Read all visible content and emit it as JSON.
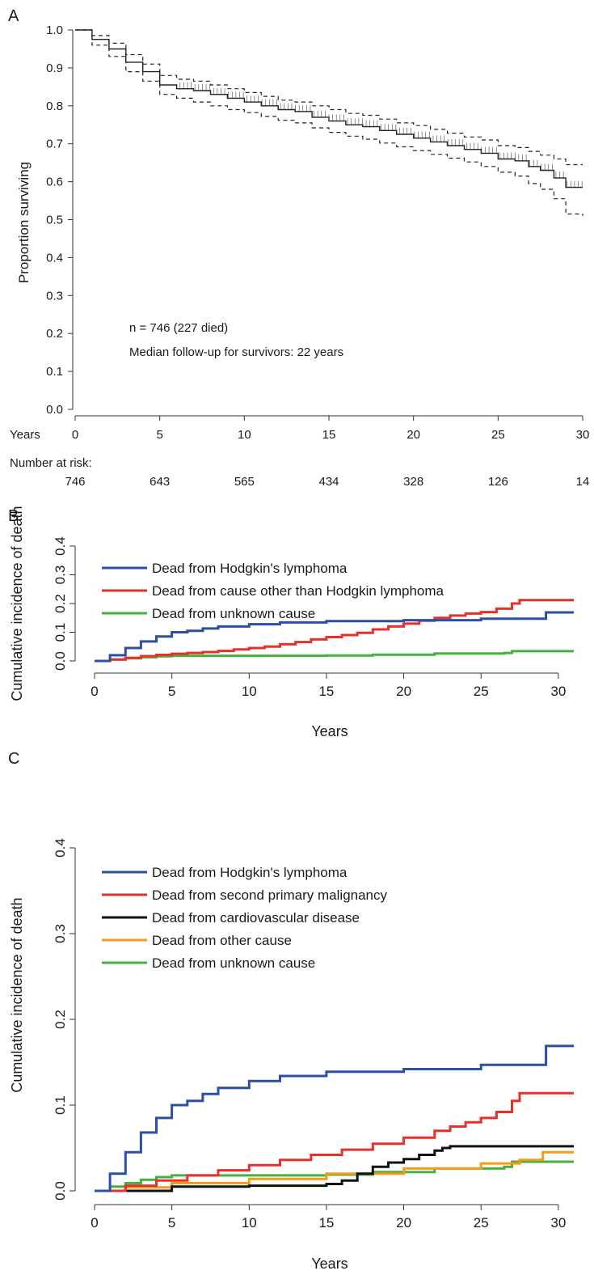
{
  "chart_data": [
    {
      "panel": "A",
      "type": "line",
      "title": "",
      "xlabel": "Years",
      "ylabel": "Proportion surviving",
      "xlim": [
        0,
        30
      ],
      "ylim": [
        0,
        1.0
      ],
      "x_ticks": [
        "0",
        "5",
        "10",
        "15",
        "20",
        "25",
        "30"
      ],
      "y_ticks": [
        "0.0",
        "0.1",
        "0.2",
        "0.3",
        "0.4",
        "0.5",
        "0.6",
        "0.7",
        "0.8",
        "0.9",
        "1.0"
      ],
      "annotations": [
        "n = 746 (227 died)",
        "Median follow-up for survivors: 22 years"
      ],
      "risk_table": {
        "label": "Number at risk:",
        "x": [
          0,
          5,
          10,
          15,
          20,
          25,
          30
        ],
        "values": [
          "746",
          "643",
          "565",
          "434",
          "328",
          "126",
          "14"
        ]
      },
      "series": [
        {
          "style": "solid",
          "x": [
            0,
            1,
            2,
            3,
            4,
            5,
            6,
            7,
            8,
            9,
            10,
            11,
            12,
            13,
            14,
            15,
            16,
            17,
            18,
            19,
            20,
            21,
            22,
            23,
            24,
            25,
            26,
            26.8,
            27.5,
            28.3,
            29,
            30
          ],
          "y": [
            1.0,
            0.975,
            0.95,
            0.915,
            0.89,
            0.855,
            0.845,
            0.84,
            0.83,
            0.82,
            0.81,
            0.8,
            0.79,
            0.785,
            0.77,
            0.76,
            0.75,
            0.745,
            0.735,
            0.725,
            0.715,
            0.705,
            0.695,
            0.685,
            0.675,
            0.66,
            0.655,
            0.64,
            0.63,
            0.61,
            0.585,
            0.585
          ]
        },
        {
          "style": "dashed",
          "x": [
            0,
            1,
            2,
            3,
            4,
            5,
            6,
            7,
            8,
            9,
            10,
            11,
            12,
            13,
            14,
            15,
            16,
            17,
            18,
            19,
            20,
            21,
            22,
            23,
            24,
            25,
            26,
            26.8,
            27.5,
            28.3,
            29,
            30
          ],
          "y": [
            1.0,
            0.985,
            0.965,
            0.935,
            0.91,
            0.88,
            0.87,
            0.865,
            0.855,
            0.845,
            0.835,
            0.825,
            0.815,
            0.81,
            0.8,
            0.79,
            0.78,
            0.775,
            0.765,
            0.755,
            0.748,
            0.738,
            0.728,
            0.718,
            0.71,
            0.695,
            0.69,
            0.68,
            0.67,
            0.66,
            0.645,
            0.645
          ]
        },
        {
          "style": "dashed",
          "x": [
            0,
            1,
            2,
            3,
            4,
            5,
            6,
            7,
            8,
            9,
            10,
            11,
            12,
            13,
            14,
            15,
            16,
            17,
            18,
            19,
            20,
            21,
            22,
            23,
            24,
            25,
            26,
            26.8,
            27.5,
            28.3,
            29,
            30
          ],
          "y": [
            1.0,
            0.96,
            0.93,
            0.89,
            0.865,
            0.83,
            0.82,
            0.81,
            0.8,
            0.79,
            0.782,
            0.772,
            0.762,
            0.755,
            0.742,
            0.73,
            0.72,
            0.712,
            0.702,
            0.692,
            0.682,
            0.672,
            0.662,
            0.652,
            0.64,
            0.625,
            0.615,
            0.595,
            0.58,
            0.555,
            0.515,
            0.51
          ]
        }
      ]
    },
    {
      "panel": "B",
      "type": "line",
      "title": "",
      "xlabel": "Years",
      "ylabel": "Cumulative incidence of death",
      "xlim": [
        0,
        31
      ],
      "ylim": [
        0,
        0.4
      ],
      "x_ticks": [
        "0",
        "5",
        "10",
        "15",
        "20",
        "25",
        "30"
      ],
      "y_ticks": [
        "0.0",
        "0.1",
        "0.2",
        "0.3",
        "0.4"
      ],
      "legend_position": "top-left",
      "series": [
        {
          "name": "Dead from Hodgkin's lymphoma",
          "color": "#2b4fa3",
          "x": [
            0,
            1,
            2,
            3,
            4,
            5,
            6,
            7,
            8,
            10,
            12,
            15,
            20,
            25,
            29.2,
            29.2,
            31
          ],
          "y": [
            0,
            0.02,
            0.045,
            0.068,
            0.085,
            0.1,
            0.105,
            0.113,
            0.12,
            0.128,
            0.134,
            0.139,
            0.142,
            0.147,
            0.147,
            0.169,
            0.169
          ]
        },
        {
          "name": "Dead from cause other than Hodgkin lymphoma",
          "color": "#e8302a",
          "x": [
            0,
            1,
            2,
            3,
            4,
            5,
            6,
            7,
            8,
            9,
            10,
            11,
            12,
            13,
            14,
            15,
            16,
            17,
            18,
            19,
            20,
            21,
            22,
            23,
            24,
            25,
            26,
            27,
            27.5,
            31
          ],
          "y": [
            0,
            0.005,
            0.011,
            0.017,
            0.021,
            0.025,
            0.028,
            0.031,
            0.035,
            0.04,
            0.045,
            0.05,
            0.058,
            0.066,
            0.075,
            0.083,
            0.09,
            0.098,
            0.11,
            0.12,
            0.13,
            0.14,
            0.15,
            0.158,
            0.165,
            0.17,
            0.182,
            0.2,
            0.212,
            0.212
          ]
        },
        {
          "name": "Dead from unknown cause",
          "color": "#44b23c",
          "x": [
            0,
            1,
            2,
            3,
            4,
            5,
            8,
            10,
            15,
            18,
            22,
            26.5,
            27,
            31
          ],
          "y": [
            0,
            0.005,
            0.009,
            0.013,
            0.016,
            0.018,
            0.018,
            0.018,
            0.019,
            0.022,
            0.026,
            0.028,
            0.034,
            0.034
          ]
        }
      ]
    },
    {
      "panel": "C",
      "type": "line",
      "title": "",
      "xlabel": "Years",
      "ylabel": "Cumulative incidence of death",
      "xlim": [
        0,
        31
      ],
      "ylim": [
        0,
        0.4
      ],
      "x_ticks": [
        "0",
        "5",
        "10",
        "15",
        "20",
        "25",
        "30"
      ],
      "y_ticks": [
        "0.0",
        "0.1",
        "0.2",
        "0.3",
        "0.4"
      ],
      "legend_position": "top-left",
      "series": [
        {
          "name": "Dead from Hodgkin's lymphoma",
          "color": "#2b4fa3",
          "x": [
            0,
            1,
            2,
            3,
            4,
            5,
            6,
            7,
            8,
            10,
            12,
            15,
            20,
            25,
            29.2,
            29.2,
            31
          ],
          "y": [
            0,
            0.02,
            0.045,
            0.068,
            0.085,
            0.1,
            0.105,
            0.113,
            0.12,
            0.128,
            0.134,
            0.139,
            0.142,
            0.147,
            0.147,
            0.169,
            0.169
          ]
        },
        {
          "name": "Dead from second primary malignancy",
          "color": "#e8302a",
          "x": [
            0,
            2,
            4,
            6,
            8,
            10,
            12,
            14,
            16,
            18,
            20,
            22,
            23,
            24,
            25,
            26,
            27,
            27.5,
            31
          ],
          "y": [
            0,
            0.006,
            0.012,
            0.018,
            0.024,
            0.03,
            0.036,
            0.042,
            0.048,
            0.055,
            0.062,
            0.07,
            0.075,
            0.08,
            0.085,
            0.092,
            0.105,
            0.114,
            0.114
          ]
        },
        {
          "name": "Dead from cardiovascular disease",
          "color": "#111111",
          "x": [
            0,
            5,
            10,
            15,
            16,
            17,
            18,
            19,
            20,
            21,
            22,
            22.5,
            23,
            31
          ],
          "y": [
            0,
            0.005,
            0.006,
            0.008,
            0.012,
            0.02,
            0.028,
            0.033,
            0.037,
            0.042,
            0.047,
            0.05,
            0.052,
            0.052
          ]
        },
        {
          "name": "Dead from other cause",
          "color": "#f39b1c",
          "x": [
            0,
            2,
            5,
            10,
            15,
            20,
            25,
            27.5,
            28.5,
            29,
            31
          ],
          "y": [
            0,
            0.004,
            0.009,
            0.014,
            0.02,
            0.026,
            0.032,
            0.036,
            0.036,
            0.045,
            0.045
          ]
        },
        {
          "name": "Dead from unknown cause",
          "color": "#44b23c",
          "x": [
            0,
            1,
            2,
            3,
            4,
            5,
            8,
            10,
            15,
            18,
            22,
            26.5,
            27,
            31
          ],
          "y": [
            0,
            0.005,
            0.009,
            0.013,
            0.016,
            0.018,
            0.018,
            0.018,
            0.019,
            0.022,
            0.026,
            0.028,
            0.034,
            0.034
          ]
        }
      ]
    }
  ]
}
